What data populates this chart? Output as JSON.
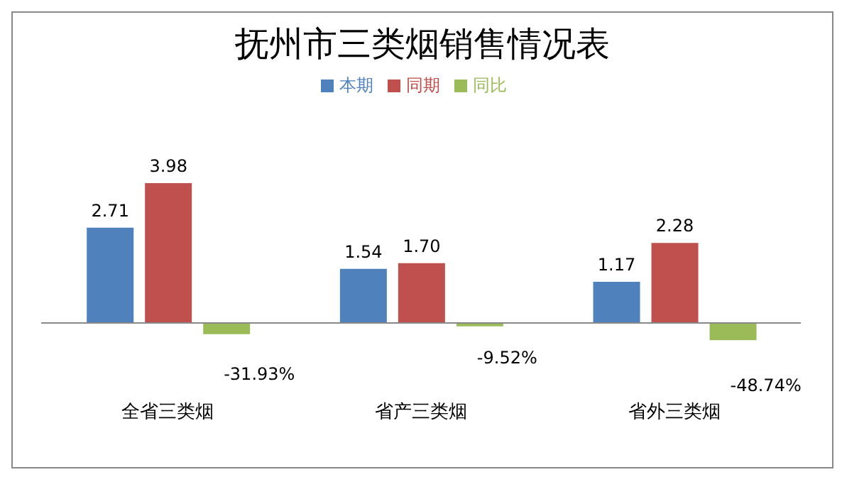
{
  "chart_data": {
    "type": "bar",
    "title": "抚州市三类烟销售情况表",
    "categories": [
      "全省三类烟",
      "省产三类烟",
      "省外三类烟"
    ],
    "legend": "top",
    "series": [
      {
        "name": "本期",
        "color": "#4f81bd",
        "values": [
          2.71,
          1.54,
          1.17
        ],
        "value_labels": [
          "2.71",
          "1.54",
          "1.17"
        ]
      },
      {
        "name": "同期",
        "color": "#c0504d",
        "values": [
          3.98,
          1.7,
          2.28
        ],
        "value_labels": [
          "3.98",
          "1.70",
          "2.28"
        ]
      },
      {
        "name": "同比",
        "color": "#9bbb59",
        "values": [
          -0.3193,
          -0.0952,
          -0.4874
        ],
        "value_labels": [
          "-31.93%",
          "-9.52%",
          "-48.74%"
        ]
      }
    ]
  }
}
